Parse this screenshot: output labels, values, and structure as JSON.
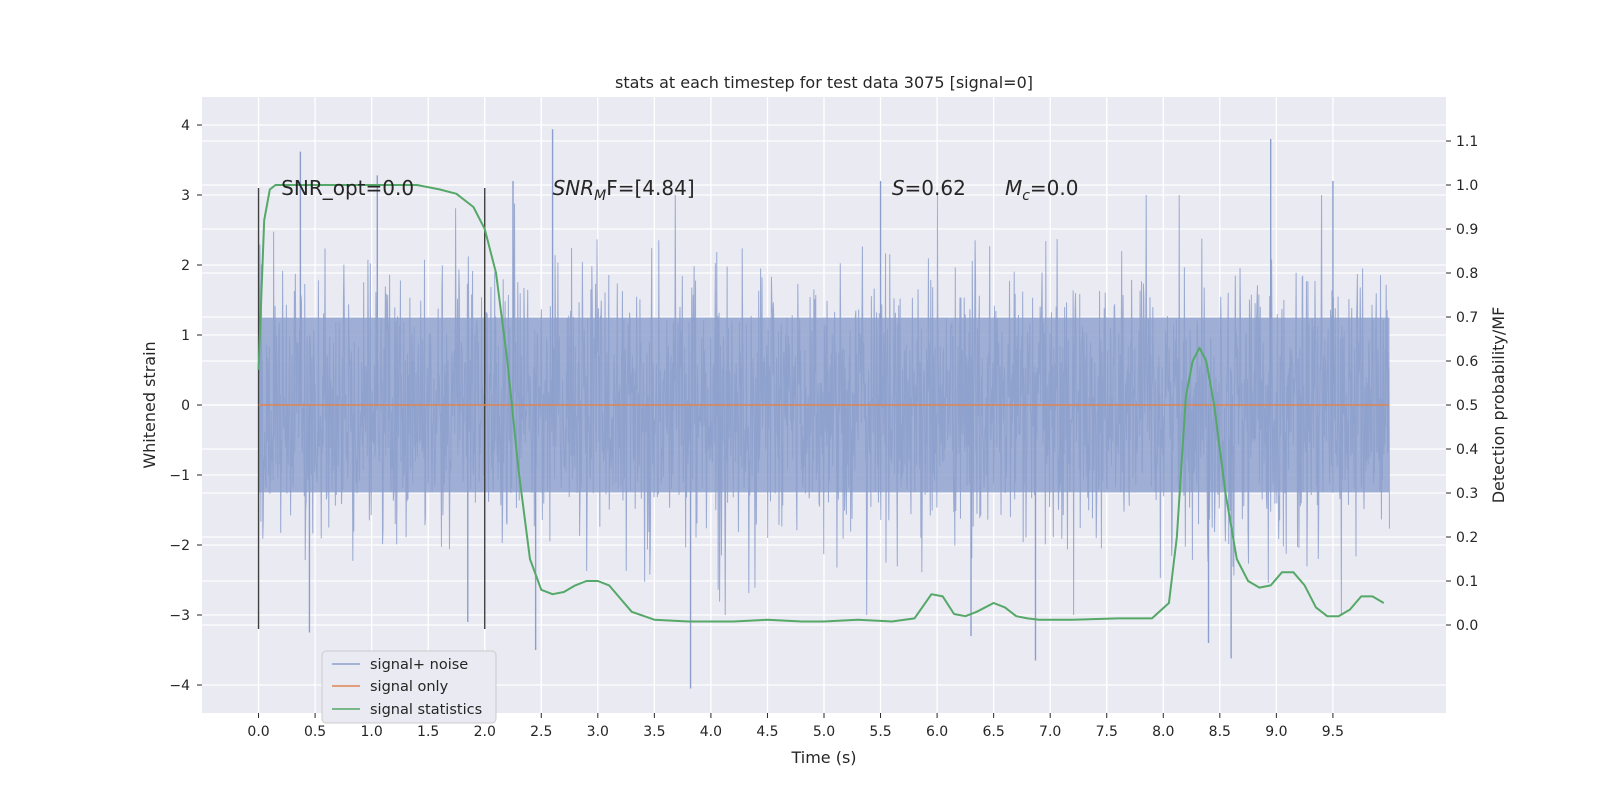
{
  "chart_data": {
    "type": "line",
    "title": "stats at each timestep for test data 3075 [signal=0]",
    "xlabel": "Time (s)",
    "ylabel": "Whitened strain",
    "y2label": "Detection probability/MF",
    "xlim": [
      -0.5,
      10.5
    ],
    "ylim": [
      -4.4,
      4.4
    ],
    "y2lim": [
      -0.2,
      1.2
    ],
    "xticks": [
      0.0,
      0.5,
      1.0,
      1.5,
      2.0,
      2.5,
      3.0,
      3.5,
      4.0,
      4.5,
      5.0,
      5.5,
      6.0,
      6.5,
      7.0,
      7.5,
      8.0,
      8.5,
      9.0,
      9.5
    ],
    "xtick_labels": [
      "0.0",
      "0.5",
      "1.0",
      "1.5",
      "2.0",
      "2.5",
      "3.0",
      "3.5",
      "4.0",
      "4.5",
      "5.0",
      "5.5",
      "6.0",
      "6.5",
      "7.0",
      "7.5",
      "8.0",
      "8.5",
      "9.0",
      "9.5"
    ],
    "yticks": [
      -4,
      -3,
      -2,
      -1,
      0,
      1,
      2,
      3,
      4
    ],
    "ytick_labels": [
      "−4",
      "−3",
      "−2",
      "−1",
      "0",
      "1",
      "2",
      "3",
      "4"
    ],
    "y2ticks": [
      0.0,
      0.1,
      0.2,
      0.3,
      0.4,
      0.5,
      0.6,
      0.7,
      0.8,
      0.9,
      1.0,
      1.1
    ],
    "y2tick_labels": [
      "0.0",
      "0.1",
      "0.2",
      "0.3",
      "0.4",
      "0.5",
      "0.6",
      "0.7",
      "0.8",
      "0.9",
      "1.0",
      "1.1"
    ],
    "grid": true,
    "legend_position": "lower-left",
    "vlines": [
      {
        "x": 0.0,
        "ymin": -3.2,
        "ymax": 3.1
      },
      {
        "x": 2.0,
        "ymin": -3.2,
        "ymax": 3.1
      }
    ],
    "annotations": [
      {
        "x": 0.2,
        "y": 3.2,
        "text": "SNR_opt=0.0"
      },
      {
        "x": 2.6,
        "y": 3.2,
        "main": "SNR",
        "sub": "M",
        "tail": "F=[4.84]"
      },
      {
        "x": 5.6,
        "y": 3.2,
        "main": "S",
        "tail": "=0.62"
      },
      {
        "x": 6.6,
        "y": 3.2,
        "main": "M",
        "sub": "c",
        "tail": "=0.0"
      }
    ],
    "series": [
      {
        "name": "signal+ noise",
        "axis": "left",
        "color": "#8c9fcc",
        "kind": "noise",
        "x_range": [
          0.0,
          10.0
        ],
        "envelope": {
          "p95": 1.95,
          "max": 3.94,
          "min": -4.05
        },
        "spikes": [
          {
            "x": 0.37,
            "y": 3.62
          },
          {
            "x": 0.45,
            "y": -3.25
          },
          {
            "x": 1.05,
            "y": 3.28
          },
          {
            "x": 1.85,
            "y": -3.1
          },
          {
            "x": 2.25,
            "y": 3.2
          },
          {
            "x": 2.45,
            "y": -3.5
          },
          {
            "x": 2.6,
            "y": 3.94
          },
          {
            "x": 3.82,
            "y": -4.05
          },
          {
            "x": 5.5,
            "y": 3.2
          },
          {
            "x": 6.3,
            "y": -3.3
          },
          {
            "x": 6.87,
            "y": -3.65
          },
          {
            "x": 8.4,
            "y": -3.4
          },
          {
            "x": 8.95,
            "y": 3.8
          },
          {
            "x": 8.6,
            "y": -3.62
          },
          {
            "x": 9.5,
            "y": 3.2
          }
        ]
      },
      {
        "name": "signal only",
        "axis": "left",
        "color": "#dd8452",
        "x": [
          0.0,
          10.0
        ],
        "values": [
          0.0,
          0.0
        ]
      },
      {
        "name": "signal statistics",
        "axis": "right",
        "color": "#55a868",
        "x": [
          0.0,
          0.05,
          0.1,
          0.15,
          0.3,
          0.6,
          1.0,
          1.4,
          1.6,
          1.75,
          1.9,
          2.0,
          2.1,
          2.2,
          2.3,
          2.4,
          2.5,
          2.6,
          2.7,
          2.8,
          2.9,
          3.0,
          3.1,
          3.2,
          3.3,
          3.5,
          3.8,
          4.0,
          4.2,
          4.5,
          4.8,
          5.0,
          5.3,
          5.6,
          5.8,
          5.95,
          6.05,
          6.15,
          6.25,
          6.35,
          6.5,
          6.6,
          6.7,
          6.8,
          6.9,
          7.2,
          7.6,
          7.9,
          8.05,
          8.12,
          8.2,
          8.26,
          8.32,
          8.38,
          8.45,
          8.55,
          8.65,
          8.75,
          8.85,
          8.95,
          9.05,
          9.15,
          9.25,
          9.35,
          9.45,
          9.55,
          9.65,
          9.75,
          9.85,
          9.95
        ],
        "values": [
          0.58,
          0.92,
          0.99,
          1.0,
          1.0,
          1.0,
          1.0,
          1.0,
          0.99,
          0.98,
          0.95,
          0.9,
          0.8,
          0.6,
          0.35,
          0.15,
          0.08,
          0.07,
          0.075,
          0.09,
          0.1,
          0.1,
          0.09,
          0.06,
          0.03,
          0.012,
          0.008,
          0.008,
          0.008,
          0.012,
          0.008,
          0.008,
          0.012,
          0.008,
          0.015,
          0.07,
          0.065,
          0.025,
          0.02,
          0.03,
          0.05,
          0.04,
          0.02,
          0.015,
          0.012,
          0.012,
          0.015,
          0.015,
          0.05,
          0.2,
          0.52,
          0.6,
          0.63,
          0.6,
          0.5,
          0.3,
          0.15,
          0.1,
          0.085,
          0.09,
          0.12,
          0.12,
          0.09,
          0.04,
          0.02,
          0.02,
          0.035,
          0.065,
          0.065,
          0.05
        ]
      }
    ]
  }
}
